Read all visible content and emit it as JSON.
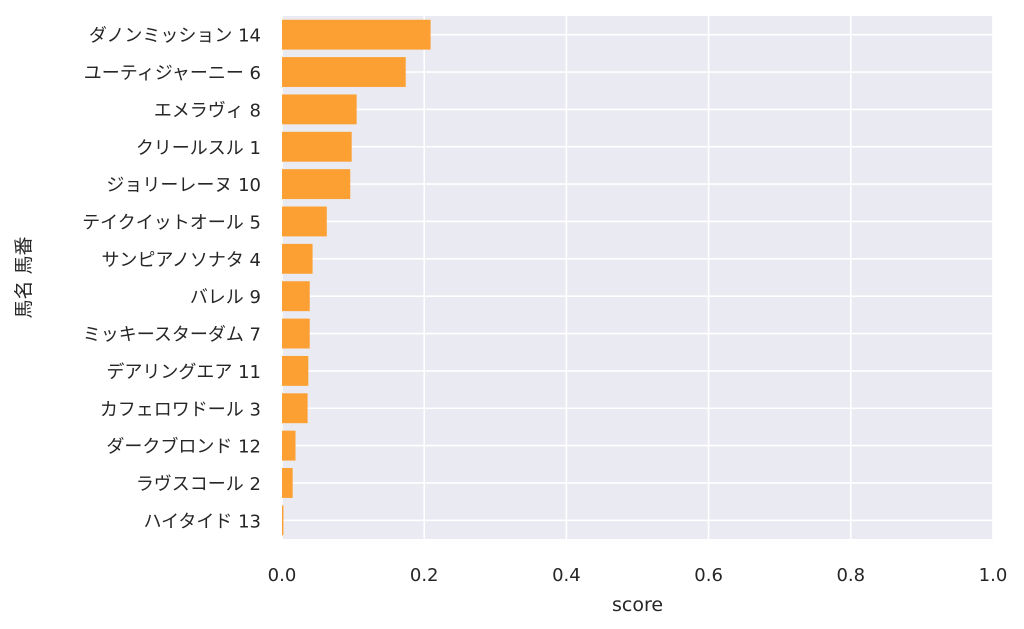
{
  "chart_data": {
    "type": "bar",
    "orientation": "horizontal",
    "categories": [
      "ダノンミッション 14",
      "ユーティジャーニー 6",
      "エメラヴィ 8",
      "クリールスル 1",
      "ジョリーレーヌ 10",
      "テイクイットオール 5",
      "サンピアノソナタ 4",
      "バレル 9",
      "ミッキースターダム 7",
      "デアリングエア 11",
      "カフェロワドール 3",
      "ダークブロンド 12",
      "ラヴスコール 2",
      "ハイタイド 13"
    ],
    "values": [
      0.209,
      0.174,
      0.105,
      0.098,
      0.096,
      0.063,
      0.043,
      0.039,
      0.039,
      0.037,
      0.036,
      0.019,
      0.015,
      0.002
    ],
    "xlabel": "score",
    "ylabel": "馬名 馬番",
    "xlim": [
      0,
      1.0
    ],
    "xticks": [
      "0.0",
      "0.2",
      "0.4",
      "0.6",
      "0.8",
      "1.0"
    ],
    "xtick_values": [
      0,
      0.2,
      0.4,
      0.6,
      0.8,
      1.0
    ],
    "grid": true,
    "colors": {
      "bar": "#fca033",
      "plot_background": "#eaeaf2",
      "grid": "#ffffff",
      "text": "#262626"
    }
  }
}
